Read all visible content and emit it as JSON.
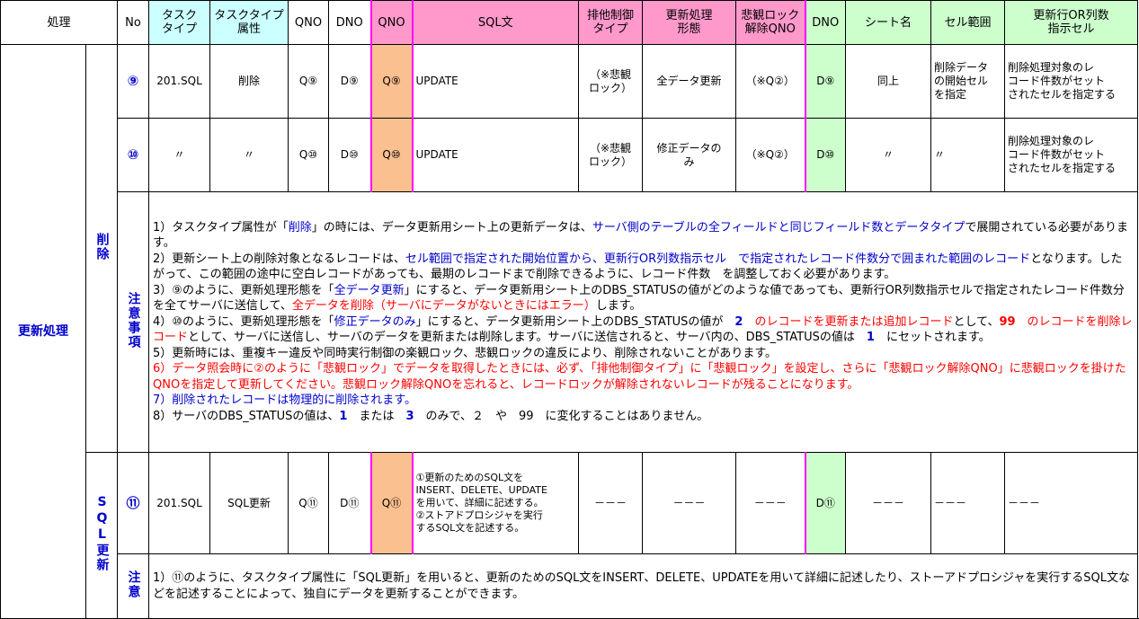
{
  "header": {
    "process": "処理",
    "no": "No",
    "task_type": "タスク\nタイプ",
    "task_type_attr": "タスクタイプ\n属性",
    "qno": "QNO",
    "dno": "DNO",
    "qno2": "QNO",
    "sql": "SQL文",
    "lock_type": "排他制御\nタイプ",
    "update_mode": "更新処理\n形態",
    "unlock_qno": "悲観ロック\n解除QNO",
    "dno2": "DNO",
    "sheet": "シート名",
    "cell_range": "セル範囲",
    "row_count_cell": "更新行OR列数\n指示セル"
  },
  "section": "更新処理",
  "groups": [
    {
      "label": "削除",
      "rows": [
        [
          "⑨",
          "201.SQL",
          "削除",
          "Q⑨",
          "D⑨",
          "Q⑨",
          "UPDATE",
          "（※悲観\nロック）",
          "全データ更新",
          "（※Q②）",
          "D⑨",
          "同上",
          "削除データ\nの開始セル\nを指定",
          "削除処理対象のレ\nコード件数がセット\nされたセルを指定する"
        ],
        [
          "⑩",
          "〃",
          "〃",
          "Q⑩",
          "D⑩",
          "Q⑩",
          "UPDATE",
          "（※悲観\nロック）",
          "修正データの\nみ",
          "（※Q②）",
          "D⑩",
          "〃",
          "〃",
          "削除処理対象のレ\nコード件数がセット\nされたセルを指定する"
        ]
      ],
      "note_label": "注意事項",
      "notes": [
        [
          {
            "t": "1）タスクタイプ属性が「"
          },
          {
            "t": "削除",
            "c": "blue"
          },
          {
            "t": "」の時には、データ更新用シート上の更新データは、"
          },
          {
            "t": "サーバ側のテーブルの全フィールドと同じフィールド数とデータタイプ",
            "c": "blue"
          },
          {
            "t": "で展開されている必要があります。"
          }
        ],
        [
          {
            "t": "2）更新シート上の削除対象となるレコードは、"
          },
          {
            "t": "セル範囲で指定された開始位置から、更新行OR列数指示セル　で指定されたレコード件数分で囲まれた範囲のレコード",
            "c": "blue"
          },
          {
            "t": "となります。したがって、この範囲の途中に空白レコードがあっても、最期のレコードまで削除できるように、レコード件数　を調整しておく必要があります。"
          }
        ],
        [
          {
            "t": "3）⑨のように、更新処理形態を「"
          },
          {
            "t": "全データ更新",
            "c": "blue"
          },
          {
            "t": "」にすると、データ更新用シート上のDBS_STATUSの値がどのような値であっても、更新行OR列数指示セルで指定されたレコード件数分を全てサーバに送信して、"
          },
          {
            "t": "全データを削除（サーバにデータがないときにはエラー）",
            "c": "red"
          },
          {
            "t": "します。"
          }
        ],
        [
          {
            "t": "4）⑩のように、更新処理形態を「"
          },
          {
            "t": "修正データのみ",
            "c": "blue"
          },
          {
            "t": "」にすると、データ更新用シート上のDBS_STATUSの値が　"
          },
          {
            "t": "2",
            "c": "blue",
            "b": true
          },
          {
            "t": "　のレコードを更新または追加レコード",
            "c": "red"
          },
          {
            "t": "として、"
          },
          {
            "t": "99",
            "c": "red",
            "b": true
          },
          {
            "t": "　のレコードを削除レコード",
            "c": "red"
          },
          {
            "t": "として、サーバに送信し、サーバのデータを更新または削除します。サーバに送信されると、サーバ内の、DBS_STATUSの値は　"
          },
          {
            "t": "1",
            "c": "blue",
            "b": true
          },
          {
            "t": "　にセットされます。"
          }
        ],
        [
          {
            "t": "5）更新時には、重複キー違反や同時実行制御の楽観ロック、悲観ロックの違反により、削除されないことがあります。"
          }
        ],
        [
          {
            "t": "6）データ照会時に②のように「悲観ロック」でデータを取得したときには、必ず、「排他制御タイプ」に「悲観ロック」を設定し、さらに「悲観ロック解除QNO」に悲観ロックを掛けたQNOを指定して更新してください。悲観ロック解除QNOを忘れると、レコードロックが解除されないレコードが残ることになります。",
            "c": "red"
          }
        ],
        [
          {
            "t": "7）削除されたレコードは物理的に削除されます。",
            "c": "blue"
          }
        ],
        [
          {
            "t": "8）サーバのDBS_STATUSの値は、"
          },
          {
            "t": "1",
            "c": "blue",
            "b": true
          },
          {
            "t": "　または　"
          },
          {
            "t": "3",
            "c": "blue",
            "b": true
          },
          {
            "t": "　のみで、２　や　99　に変化することはありません。"
          }
        ]
      ]
    },
    {
      "label": "SQL更新",
      "rows": [
        [
          "⑪",
          "201.SQL",
          "SQL更新",
          "Q⑪",
          "D⑪",
          "Q⑪",
          "①更新のためのSQL文を\nINSERT、DELETE、UPDATE\nを用いて、詳細に記述する。\n②ストアドプロシジャを実行\nするSQL文を記述する。",
          "－－－",
          "－－－",
          "－－－",
          "D⑪",
          "－－－",
          "－－－",
          "－－－"
        ]
      ],
      "note_label": "注意",
      "notes": [
        [
          {
            "t": "1）⑪のように、タスクタイプ属性に「SQL更新」を用いると、更新のためのSQL文をINSERT、DELETE、UPDATEを用いて詳細に記述したり、ストーアドプロシジャを実行するSQL文などを記述することによって、独自にデータを更新することができます。"
          }
        ]
      ]
    }
  ]
}
